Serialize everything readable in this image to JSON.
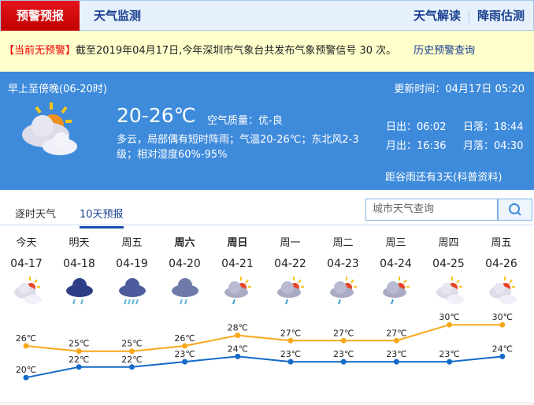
{
  "nav": {
    "active": "预警预报",
    "monitor": "天气监测",
    "interpret": "天气解读",
    "rain": "降雨估测"
  },
  "warning": {
    "status": "【当前无预警】",
    "text": "截至2019年04月17日,今年深圳市气象台共发布气象预警信号 30 次。",
    "history_link": "历史预警查询"
  },
  "today": {
    "period": "早上至傍晚(06-20时)",
    "updated": "更新时间：04月17日 05:20",
    "temp": "20-26℃",
    "aqi": "空气质量：优-良",
    "desc1": "多云，局部偶有短时阵雨；气温20-26℃；东北风2-3",
    "desc2": "级；相对湿度60%-95%",
    "sunrise": "日出：06:02",
    "sunset": "日落：18:44",
    "moonrise": "月出：16:36",
    "moonset": "月落：04:30",
    "solar_term": "距谷雨还有3天(科普资料)",
    "icon": "partly-cloudy-icon"
  },
  "tabs": [
    "逐时天气",
    "10天预报"
  ],
  "search": {
    "placeholder": "城市天气查询"
  },
  "colors": {
    "high": "#f7a81b",
    "low": "#1569c7",
    "accent": "#3f8bdb"
  },
  "days": [
    {
      "day": "今天",
      "date": "04-17",
      "icon": "partly-cloudy",
      "bold": false
    },
    {
      "day": "明天",
      "date": "04-18",
      "icon": "light-rain",
      "bold": false
    },
    {
      "day": "周五",
      "date": "04-19",
      "icon": "heavy-rain",
      "bold": false
    },
    {
      "day": "周六",
      "date": "04-20",
      "icon": "moderate-rain",
      "bold": true
    },
    {
      "day": "周日",
      "date": "04-21",
      "icon": "shower",
      "bold": true
    },
    {
      "day": "周一",
      "date": "04-22",
      "icon": "shower",
      "bold": false
    },
    {
      "day": "周二",
      "date": "04-23",
      "icon": "shower",
      "bold": false
    },
    {
      "day": "周三",
      "date": "04-24",
      "icon": "shower",
      "bold": false
    },
    {
      "day": "周四",
      "date": "04-25",
      "icon": "partly-cloudy",
      "bold": false
    },
    {
      "day": "周五",
      "date": "04-26",
      "icon": "partly-cloudy",
      "bold": false
    }
  ],
  "chart_data": {
    "type": "line",
    "categories": [
      "04-17",
      "04-18",
      "04-19",
      "04-20",
      "04-21",
      "04-22",
      "04-23",
      "04-24",
      "04-25",
      "04-26"
    ],
    "unit": "℃",
    "series": [
      {
        "values": [
          26,
          25,
          25,
          26,
          28,
          27,
          27,
          27,
          30,
          30
        ],
        "color": "#f7a81b"
      },
      {
        "values": [
          20,
          22,
          22,
          23,
          24,
          23,
          23,
          23,
          23,
          24
        ],
        "color": "#1569c7"
      }
    ]
  }
}
